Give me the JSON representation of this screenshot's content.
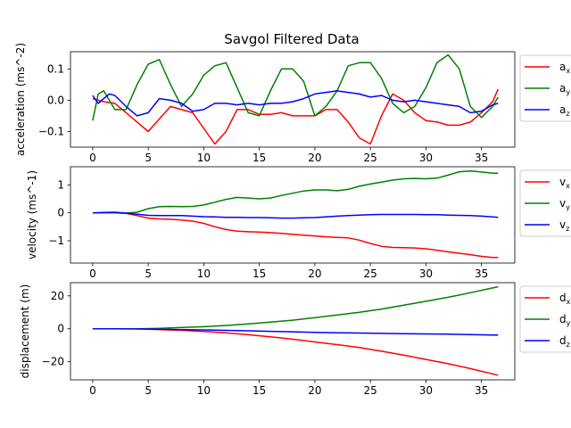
{
  "chart_data": [
    {
      "type": "line",
      "title": "Savgol Filtered Data",
      "xlabel": "",
      "ylabel": "acceleration (ms^-2)",
      "xlim": [
        -2,
        38
      ],
      "ylim": [
        -0.15,
        0.155
      ],
      "xticks": [
        0,
        5,
        10,
        15,
        20,
        25,
        30,
        35
      ],
      "yticks": [
        -0.1,
        0.0,
        0.1
      ],
      "ytick_labels": [
        "−0.1",
        "0.0",
        "0.1"
      ],
      "legend_placement": "outside-right",
      "series": [
        {
          "name": "a",
          "subscript": "x",
          "color": "#ff0000",
          "x": [
            0,
            1,
            2,
            3,
            4,
            5,
            6,
            7,
            8,
            9,
            10,
            11,
            12,
            13,
            14,
            15,
            16,
            17,
            18,
            19,
            20,
            21,
            22,
            23,
            24,
            25,
            26,
            27,
            28,
            29,
            30,
            31,
            32,
            33,
            34,
            35,
            36,
            36.5
          ],
          "y": [
            0.005,
            -0.005,
            -0.01,
            -0.04,
            -0.07,
            -0.1,
            -0.06,
            -0.02,
            -0.03,
            -0.04,
            -0.09,
            -0.14,
            -0.1,
            -0.03,
            -0.03,
            -0.045,
            -0.045,
            -0.04,
            -0.05,
            -0.05,
            -0.05,
            -0.03,
            -0.03,
            -0.07,
            -0.12,
            -0.14,
            -0.05,
            0.02,
            0.0,
            -0.04,
            -0.065,
            -0.07,
            -0.08,
            -0.08,
            -0.07,
            -0.04,
            -0.005,
            0.035
          ]
        },
        {
          "name": "a",
          "subscript": "y",
          "color": "#008000",
          "x": [
            0,
            0.5,
            1,
            2,
            3,
            4,
            5,
            6,
            7,
            8,
            9,
            10,
            11,
            12,
            13,
            14,
            15,
            16,
            17,
            18,
            19,
            20,
            21,
            22,
            23,
            24,
            25,
            26,
            27,
            28,
            29,
            30,
            31,
            32,
            33,
            34,
            35,
            36,
            36.5
          ],
          "y": [
            -0.065,
            0.02,
            0.03,
            -0.03,
            -0.03,
            0.05,
            0.115,
            0.13,
            0.05,
            -0.02,
            0.02,
            0.08,
            0.11,
            0.12,
            0.04,
            -0.04,
            -0.05,
            0.03,
            0.1,
            0.1,
            0.06,
            -0.05,
            -0.02,
            0.03,
            0.11,
            0.12,
            0.12,
            0.07,
            -0.01,
            -0.04,
            -0.02,
            0.04,
            0.12,
            0.145,
            0.1,
            -0.02,
            -0.055,
            -0.02,
            0.01
          ]
        },
        {
          "name": "a",
          "subscript": "z",
          "color": "#0000ff",
          "x": [
            0,
            0.5,
            1,
            1.5,
            2,
            3,
            4,
            5,
            6,
            7,
            8,
            9,
            10,
            11,
            12,
            13,
            14,
            15,
            16,
            17,
            18,
            19,
            20,
            21,
            22,
            23,
            24,
            25,
            26,
            27,
            28,
            29,
            30,
            31,
            32,
            33,
            34,
            35,
            36,
            36.5
          ],
          "y": [
            0.015,
            -0.01,
            0.005,
            0.02,
            0.015,
            -0.02,
            -0.05,
            -0.04,
            0.005,
            0.0,
            -0.01,
            -0.035,
            -0.03,
            -0.01,
            -0.01,
            -0.015,
            -0.01,
            -0.015,
            -0.01,
            -0.01,
            -0.005,
            0.005,
            0.02,
            0.025,
            0.03,
            0.025,
            0.02,
            0.01,
            0.015,
            0.0,
            -0.005,
            0.0,
            -0.005,
            -0.01,
            -0.015,
            -0.02,
            -0.04,
            -0.035,
            -0.015,
            -0.01
          ]
        }
      ]
    },
    {
      "type": "line",
      "title": "",
      "xlabel": "",
      "ylabel": "velocity (ms^-1)",
      "xlim": [
        -2,
        38
      ],
      "ylim": [
        -1.8,
        1.65
      ],
      "xticks": [
        0,
        5,
        10,
        15,
        20,
        25,
        30,
        35
      ],
      "yticks": [
        -1,
        0,
        1
      ],
      "ytick_labels": [
        "−1",
        "0",
        "1"
      ],
      "legend_placement": "outside-right",
      "series": [
        {
          "name": "v",
          "subscript": "x",
          "color": "#ff0000",
          "x": [
            0,
            1,
            2,
            3,
            4,
            5,
            6,
            7,
            8,
            9,
            10,
            11,
            12,
            13,
            14,
            15,
            16,
            17,
            18,
            19,
            20,
            21,
            22,
            23,
            24,
            25,
            26,
            27,
            28,
            29,
            30,
            31,
            32,
            33,
            34,
            35,
            36,
            36.5
          ],
          "y": [
            0.0,
            0.0,
            0.0,
            -0.02,
            -0.1,
            -0.19,
            -0.22,
            -0.23,
            -0.26,
            -0.3,
            -0.38,
            -0.5,
            -0.6,
            -0.66,
            -0.68,
            -0.69,
            -0.71,
            -0.74,
            -0.77,
            -0.8,
            -0.83,
            -0.86,
            -0.88,
            -0.9,
            -0.98,
            -1.1,
            -1.2,
            -1.24,
            -1.25,
            -1.26,
            -1.29,
            -1.34,
            -1.4,
            -1.45,
            -1.5,
            -1.56,
            -1.6,
            -1.6
          ]
        },
        {
          "name": "v",
          "subscript": "y",
          "color": "#008000",
          "x": [
            0,
            1,
            2,
            3,
            4,
            5,
            6,
            7,
            8,
            9,
            10,
            11,
            12,
            13,
            14,
            15,
            16,
            17,
            18,
            19,
            20,
            21,
            22,
            23,
            24,
            25,
            26,
            27,
            28,
            29,
            30,
            31,
            32,
            33,
            34,
            35,
            36,
            36.5
          ],
          "y": [
            0.0,
            0.0,
            0.0,
            -0.01,
            0.02,
            0.15,
            0.22,
            0.23,
            0.22,
            0.23,
            0.28,
            0.38,
            0.48,
            0.55,
            0.53,
            0.5,
            0.53,
            0.62,
            0.7,
            0.78,
            0.82,
            0.82,
            0.79,
            0.84,
            0.95,
            1.03,
            1.1,
            1.17,
            1.22,
            1.23,
            1.22,
            1.24,
            1.35,
            1.47,
            1.5,
            1.46,
            1.42,
            1.42
          ]
        },
        {
          "name": "v",
          "subscript": "z",
          "color": "#0000ff",
          "x": [
            0,
            1,
            2,
            3,
            4,
            5,
            6,
            7,
            8,
            9,
            10,
            11,
            12,
            13,
            14,
            15,
            16,
            17,
            18,
            19,
            20,
            21,
            22,
            23,
            24,
            25,
            26,
            27,
            28,
            29,
            30,
            31,
            32,
            33,
            34,
            35,
            36,
            36.5
          ],
          "y": [
            0.0,
            0.01,
            0.02,
            -0.01,
            -0.05,
            -0.09,
            -0.1,
            -0.1,
            -0.1,
            -0.12,
            -0.14,
            -0.15,
            -0.16,
            -0.16,
            -0.17,
            -0.17,
            -0.18,
            -0.19,
            -0.19,
            -0.18,
            -0.17,
            -0.15,
            -0.12,
            -0.1,
            -0.08,
            -0.07,
            -0.06,
            -0.06,
            -0.06,
            -0.06,
            -0.07,
            -0.07,
            -0.08,
            -0.09,
            -0.1,
            -0.12,
            -0.15,
            -0.16
          ]
        }
      ]
    },
    {
      "type": "line",
      "title": "",
      "xlabel": "",
      "ylabel": "displacement (m)",
      "xlim": [
        -2,
        38
      ],
      "ylim": [
        -31,
        28
      ],
      "xticks": [
        0,
        5,
        10,
        15,
        20,
        25,
        30,
        35
      ],
      "yticks": [
        -20,
        0,
        20
      ],
      "ytick_labels": [
        "−20",
        "0",
        "20"
      ],
      "legend_placement": "outside-right",
      "series": [
        {
          "name": "d",
          "subscript": "x",
          "color": "#ff0000",
          "x": [
            0,
            2,
            4,
            6,
            8,
            10,
            12,
            14,
            16,
            18,
            20,
            22,
            24,
            26,
            28,
            30,
            32,
            34,
            36,
            36.5
          ],
          "y": [
            0.0,
            0.0,
            -0.1,
            -0.45,
            -0.95,
            -1.6,
            -2.5,
            -3.6,
            -4.9,
            -6.3,
            -8.0,
            -9.6,
            -11.4,
            -13.6,
            -16.0,
            -18.6,
            -21.2,
            -24.2,
            -27.4,
            -28.2
          ]
        },
        {
          "name": "d",
          "subscript": "y",
          "color": "#008000",
          "x": [
            0,
            2,
            4,
            6,
            8,
            10,
            12,
            14,
            16,
            18,
            20,
            22,
            24,
            26,
            28,
            30,
            32,
            34,
            36,
            36.5
          ],
          "y": [
            0.0,
            0.0,
            0.03,
            0.3,
            0.75,
            1.25,
            2.0,
            3.0,
            4.0,
            5.2,
            6.8,
            8.4,
            10.0,
            12.0,
            14.3,
            16.7,
            19.1,
            21.9,
            24.8,
            25.5
          ]
        },
        {
          "name": "d",
          "subscript": "z",
          "color": "#0000ff",
          "x": [
            0,
            2,
            4,
            6,
            8,
            10,
            12,
            14,
            16,
            18,
            20,
            22,
            24,
            26,
            28,
            30,
            32,
            34,
            36,
            36.5
          ],
          "y": [
            0.0,
            0.0,
            -0.1,
            -0.25,
            -0.45,
            -0.7,
            -0.95,
            -1.25,
            -1.55,
            -1.85,
            -2.15,
            -2.4,
            -2.6,
            -2.8,
            -3.0,
            -3.15,
            -3.3,
            -3.5,
            -3.75,
            -3.8
          ]
        }
      ]
    }
  ]
}
